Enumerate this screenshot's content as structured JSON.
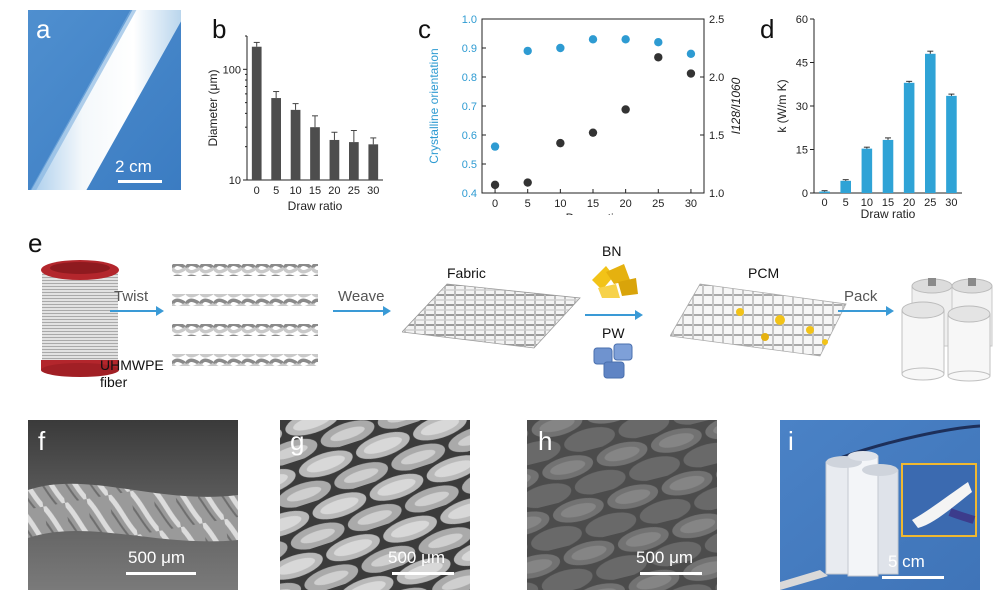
{
  "panel_labels": {
    "a": "a",
    "b": "b",
    "c": "c",
    "d": "d",
    "e": "e",
    "f": "f",
    "g": "g",
    "h": "h",
    "i": "i"
  },
  "scale_bars": {
    "a": "2 cm",
    "f": "500 μm",
    "g": "500 μm",
    "h": "500 μm",
    "i": "5 cm"
  },
  "schematic": {
    "step_twist": "Twist",
    "step_weave": "Weave",
    "step_pack": "Pack",
    "fiber_label_1": "UHMWPE",
    "fiber_label_2": "fiber",
    "fabric_label": "Fabric",
    "bn_label": "BN",
    "pw_label": "PW",
    "pcm_label": "PCM"
  },
  "chart_data": [
    {
      "panel": "b",
      "type": "bar",
      "categories": [
        "0",
        "5",
        "10",
        "15",
        "20",
        "25",
        "30"
      ],
      "values": [
        160,
        55,
        43,
        30,
        23,
        22,
        21
      ],
      "errors": [
        15,
        8,
        6,
        8,
        4,
        6,
        3
      ],
      "ylabel": "Diameter (μm)",
      "xlabel": "Draw ratio",
      "yscale": "log",
      "ylim": [
        10,
        200
      ],
      "yticks": [
        10,
        100
      ],
      "bar_color": "#4d4d4d"
    },
    {
      "panel": "c",
      "type": "scatter",
      "x": [
        0,
        5,
        10,
        15,
        20,
        25,
        30
      ],
      "series": [
        {
          "axis": "left",
          "values": [
            0.56,
            0.89,
            0.9,
            0.93,
            0.93,
            0.92,
            0.88
          ],
          "color": "#2e9bd2"
        },
        {
          "axis": "right",
          "values": [
            1.07,
            1.09,
            1.43,
            1.52,
            1.72,
            2.17,
            2.03
          ],
          "color": "#333333"
        }
      ],
      "xlabel": "Draw ratio",
      "ylabel_left": "Crystalline orientation",
      "ylabel_right": "I128/I1060",
      "ylim_left": [
        0.4,
        1.0
      ],
      "ylim_right": [
        1.0,
        2.5
      ],
      "yticks_left": [
        "0.4",
        "0.5",
        "0.6",
        "0.7",
        "0.8",
        "0.9",
        "1.0"
      ],
      "yticks_right": [
        "1.0",
        "1.5",
        "2.0",
        "2.5"
      ],
      "xticks": [
        "0",
        "5",
        "10",
        "15",
        "20",
        "25",
        "30"
      ],
      "xlim": [
        -2,
        32
      ]
    },
    {
      "panel": "d",
      "type": "bar",
      "categories": [
        "0",
        "5",
        "10",
        "15",
        "20",
        "25",
        "30"
      ],
      "values": [
        0.5,
        4.2,
        15.3,
        18.3,
        38,
        48,
        33.5
      ],
      "errors": [
        0.3,
        0.4,
        0.5,
        0.7,
        0.5,
        0.9,
        0.6
      ],
      "ylabel": "k (W/m K)",
      "xlabel": "Draw ratio",
      "ylim": [
        0,
        60
      ],
      "yticks": [
        "0",
        "15",
        "30",
        "45",
        "60"
      ],
      "bar_color": "#2fa3d6"
    }
  ]
}
